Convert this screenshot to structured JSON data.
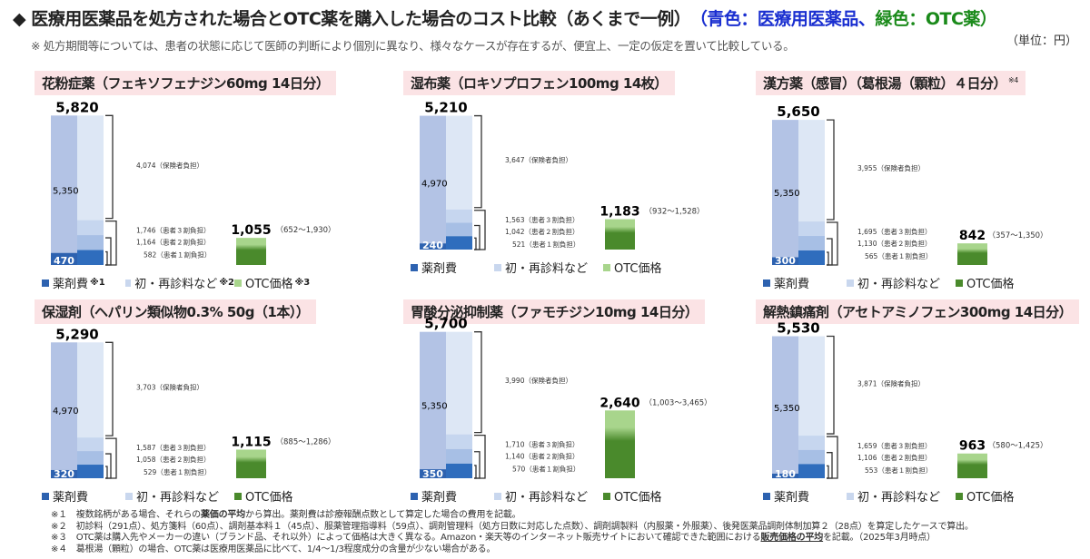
{
  "header": {
    "title_main": "◆  医療用医薬品を処方された場合とOTC薬を購入した場合のコスト比較（あくまで一例）",
    "title_paren_open": "（",
    "title_blue": "青色：医療用医薬品、",
    "title_green": "緑色：OTC薬",
    "title_paren_close": "）",
    "subtitle": "※ 処方期間等については、患者の状態に応じて医師の判断により個別に異なり、様々なケースが存在するが、便宜上、一定の仮定を置いて比較している。",
    "unit": "（単位：円）"
  },
  "colors": {
    "drug_dark": "#2d62b0",
    "fee_light": "#b3c3e5",
    "insurer_pale": "#dde7f5",
    "patient3": "#c6d6ef",
    "patient2": "#a7bfe5",
    "patient1": "#2f6dbd",
    "otc_light": "#a8d58c",
    "otc_dark": "#4a8a2c",
    "title_bg": "#fbe3e5"
  },
  "legend": {
    "drug": "薬剤費",
    "fee": "初・再診料など",
    "otc": "OTC価格",
    "notes": [
      "※1",
      "※2",
      "※3"
    ]
  },
  "labels": {
    "insurer": "（保険者負担）",
    "patient3": "（患者３割負担）",
    "patient2": "（患者２割負担）",
    "patient1": "（患者１割負担）"
  },
  "chart_data": [
    {
      "type": "bar",
      "title": "花粉症薬（フェキソフェナジン60mg 14日分）",
      "note": "",
      "total": 5820,
      "total_label": "5,820",
      "drug": 470,
      "drug_label": "470",
      "fee": 5350,
      "fee_label": "5,350",
      "insurer": 4074,
      "insurer_label": "4,074",
      "patient3": 1746,
      "patient3_label": "1,746",
      "patient2": 1164,
      "patient2_label": "1,164",
      "patient1": 582,
      "patient1_label": "582",
      "otc": 1055,
      "otc_label": "1,055",
      "otc_range": "（652～1,930）"
    },
    {
      "type": "bar",
      "title": "湿布薬（ロキソプロフェン100mg 14枚）",
      "note": "",
      "total": 5210,
      "total_label": "5,210",
      "drug": 240,
      "drug_label": "240",
      "fee": 4970,
      "fee_label": "4,970",
      "insurer": 3647,
      "insurer_label": "3,647",
      "patient3": 1563,
      "patient3_label": "1,563",
      "patient2": 1042,
      "patient2_label": "1,042",
      "patient1": 521,
      "patient1_label": "521",
      "otc": 1183,
      "otc_label": "1,183",
      "otc_range": "（932～1,528）"
    },
    {
      "type": "bar",
      "title": "漢方薬（感冒）（葛根湯（顆粒）４日分）",
      "note": "※4",
      "total": 5650,
      "total_label": "5,650",
      "drug": 300,
      "drug_label": "300",
      "fee": 5350,
      "fee_label": "5,350",
      "insurer": 3955,
      "insurer_label": "3,955",
      "patient3": 1695,
      "patient3_label": "1,695",
      "patient2": 1130,
      "patient2_label": "1,130",
      "patient1": 565,
      "patient1_label": "565",
      "otc": 842,
      "otc_label": "842",
      "otc_range": "（357～1,350）"
    },
    {
      "type": "bar",
      "title": "保湿剤（ヘパリン類似物0.3% 50g（1本））",
      "note": "",
      "total": 5290,
      "total_label": "5,290",
      "drug": 320,
      "drug_label": "320",
      "fee": 4970,
      "fee_label": "4,970",
      "insurer": 3703,
      "insurer_label": "3,703",
      "patient3": 1587,
      "patient3_label": "1,587",
      "patient2": 1058,
      "patient2_label": "1,058",
      "patient1": 529,
      "patient1_label": "529",
      "otc": 1115,
      "otc_label": "1,115",
      "otc_range": "（885～1,286）"
    },
    {
      "type": "bar",
      "title": "胃酸分泌抑制薬（ファモチジン10mg 14日分）",
      "note": "",
      "total": 5700,
      "total_label": "5,700",
      "drug": 350,
      "drug_label": "350",
      "fee": 5350,
      "fee_label": "5,350",
      "insurer": 3990,
      "insurer_label": "3,990",
      "patient3": 1710,
      "patient3_label": "1,710",
      "patient2": 1140,
      "patient2_label": "1,140",
      "patient1": 570,
      "patient1_label": "570",
      "otc": 2640,
      "otc_label": "2,640",
      "otc_range": "（1,003～3,465）"
    },
    {
      "type": "bar",
      "title": "解熱鎮痛剤（アセトアミノフェン300mg 14日分）",
      "note": "",
      "total": 5530,
      "total_label": "5,530",
      "drug": 180,
      "drug_label": "180",
      "fee": 5350,
      "fee_label": "5,350",
      "insurer": 3871,
      "insurer_label": "3,871",
      "patient3": 1659,
      "patient3_label": "1,659",
      "patient2": 1106,
      "patient2_label": "1,106",
      "patient1": 553,
      "patient1_label": "553",
      "otc": 963,
      "otc_label": "963",
      "otc_range": "（580～1,425）"
    }
  ],
  "footnotes": [
    {
      "mark": "※１",
      "pre": "複数銘柄がある場合、それらの",
      "bold": "薬価の平均",
      "post": "から算出。薬剤費は診療報酬点数として算定した場合の費用を記載。"
    },
    {
      "mark": "※２",
      "pre": "初診料（291点）、処方箋料（60点）、調剤基本料１（45点）、服薬管理指導料（59点）、調剤管理料（処方日数に対応した点数）、調剤調製料（内服薬・外服薬）、後発医薬品調剤体制加算２（28点）を算定したケースで算出。",
      "bold": "",
      "post": ""
    },
    {
      "mark": "※３",
      "pre": "OTC薬は購入先やメーカーの違い（ブランド品、それ以外）によって価格は大きく異なる。Amazon・楽天等のインターネット販売サイトにおいて確認できた範囲における",
      "bold": "販売価格の平均",
      "post": "を記載。（2025年3月時点）"
    },
    {
      "mark": "※４",
      "pre": "葛根湯（顆粒）の場合、OTC薬は医療用医薬品に比べて、1/4～1/3程度成分の含量が少ない場合がある。",
      "bold": "",
      "post": ""
    }
  ]
}
